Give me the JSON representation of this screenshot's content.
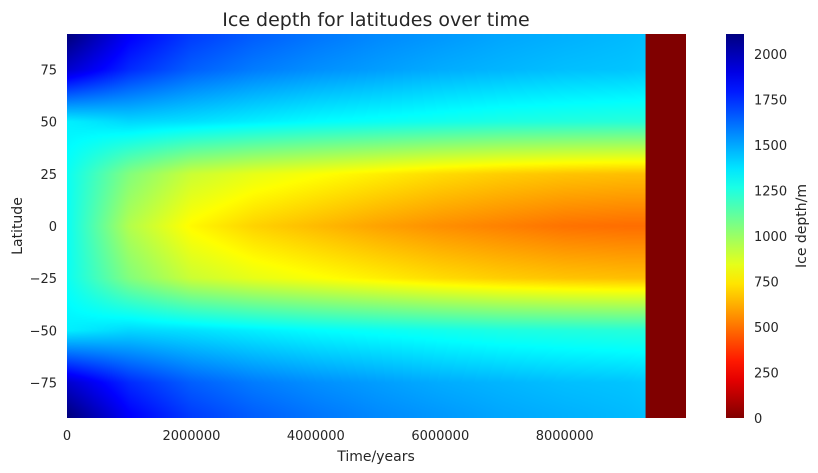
{
  "chart_data": {
    "type": "heatmap",
    "title": "Ice depth for latitudes over time",
    "xlabel": "Time/years",
    "ylabel": "Latitude",
    "xlim": [
      0,
      9950000
    ],
    "ylim": [
      -92,
      92
    ],
    "x_ticks": [
      0,
      2000000,
      4000000,
      6000000,
      8000000
    ],
    "x_tick_labels": [
      "0",
      "2000000",
      "4000000",
      "6000000",
      "8000000"
    ],
    "y_ticks": [
      75,
      50,
      25,
      0,
      -25,
      -50,
      -75
    ],
    "y_tick_labels": [
      "75",
      "50",
      "25",
      "0",
      "−25",
      "−50",
      "−75"
    ],
    "colorbar": {
      "label": "Ice depth/m",
      "colormap": "jet",
      "range": [
        0,
        2110
      ],
      "ticks": [
        0,
        250,
        500,
        750,
        1000,
        1250,
        1500,
        1750,
        2000
      ],
      "tick_labels": [
        "0",
        "250",
        "500",
        "750",
        "1000",
        "1250",
        "1500",
        "1750",
        "2000"
      ]
    },
    "time_samples_years": [
      0,
      1000000,
      2000000,
      3000000,
      4000000,
      5000000,
      6000000,
      7000000,
      8000000,
      9000000,
      9300000
    ],
    "latitude_samples": [
      90,
      75,
      50,
      25,
      0,
      -25,
      -50,
      -75,
      -90
    ],
    "depth_m": [
      [
        2110,
        1850,
        1720,
        1650,
        1600,
        1560,
        1530,
        1500,
        1480,
        1460,
        1450
      ],
      [
        1950,
        1760,
        1650,
        1590,
        1550,
        1520,
        1490,
        1470,
        1450,
        1440,
        1430
      ],
      [
        1350,
        1400,
        1380,
        1350,
        1320,
        1300,
        1280,
        1260,
        1250,
        1240,
        1240
      ],
      [
        1300,
        1050,
        900,
        840,
        800,
        760,
        720,
        690,
        670,
        660,
        660
      ],
      [
        1300,
        950,
        780,
        700,
        650,
        600,
        560,
        530,
        500,
        490,
        490
      ],
      [
        1300,
        1050,
        900,
        840,
        800,
        760,
        720,
        690,
        670,
        660,
        660
      ],
      [
        1350,
        1400,
        1380,
        1350,
        1320,
        1300,
        1280,
        1260,
        1250,
        1240,
        1240
      ],
      [
        1950,
        1760,
        1650,
        1590,
        1550,
        1520,
        1490,
        1470,
        1450,
        1440,
        1430
      ],
      [
        2110,
        1850,
        1720,
        1650,
        1600,
        1560,
        1530,
        1500,
        1480,
        1460,
        1450
      ]
    ],
    "ice_free_after_years": 9300000,
    "grid": false
  }
}
